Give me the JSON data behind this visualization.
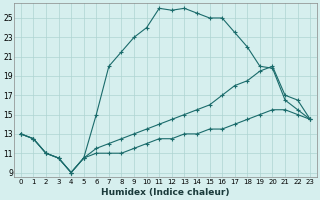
{
  "xlabel": "Humidex (Indice chaleur)",
  "bg_color": "#d6efee",
  "grid_color": "#aed4d2",
  "line_color": "#1a6b6b",
  "xlim": [
    -0.5,
    23.5
  ],
  "ylim": [
    8.5,
    26.5
  ],
  "xticks": [
    0,
    1,
    2,
    3,
    4,
    5,
    6,
    7,
    8,
    9,
    10,
    11,
    12,
    13,
    14,
    15,
    16,
    17,
    18,
    19,
    20,
    21,
    22,
    23
  ],
  "yticks": [
    9,
    11,
    13,
    15,
    17,
    19,
    21,
    23,
    25
  ],
  "line1_x": [
    0,
    1,
    2,
    3,
    4,
    5,
    6,
    7,
    8,
    9,
    10,
    11,
    12,
    13,
    14,
    15,
    16,
    17,
    18,
    19,
    20,
    21,
    22,
    23
  ],
  "line1_y": [
    13,
    12.5,
    11,
    10.5,
    9,
    10.5,
    15,
    20,
    21.5,
    23,
    24,
    26,
    25.8,
    26,
    25.5,
    25,
    25,
    23.5,
    22,
    20,
    19.8,
    16.5,
    15.5,
    14.5
  ],
  "line2_x": [
    0,
    1,
    2,
    3,
    4,
    5,
    6,
    7,
    8,
    9,
    10,
    11,
    12,
    13,
    14,
    15,
    16,
    17,
    18,
    19,
    20,
    21,
    22,
    23
  ],
  "line2_y": [
    13,
    12.5,
    11,
    10.5,
    9,
    10.5,
    11.5,
    12,
    12.5,
    13,
    13.5,
    14,
    14.5,
    15,
    15.5,
    16,
    17,
    18,
    18.5,
    19.5,
    20,
    17,
    16.5,
    14.5
  ],
  "line3_x": [
    0,
    1,
    2,
    3,
    4,
    5,
    6,
    7,
    8,
    9,
    10,
    11,
    12,
    13,
    14,
    15,
    16,
    17,
    18,
    19,
    20,
    21,
    22,
    23
  ],
  "line3_y": [
    13,
    12.5,
    11,
    10.5,
    9,
    10.5,
    11,
    11,
    11,
    11.5,
    12,
    12.5,
    12.5,
    13,
    13,
    13.5,
    13.5,
    14,
    14.5,
    15,
    15.5,
    15.5,
    15,
    14.5
  ]
}
